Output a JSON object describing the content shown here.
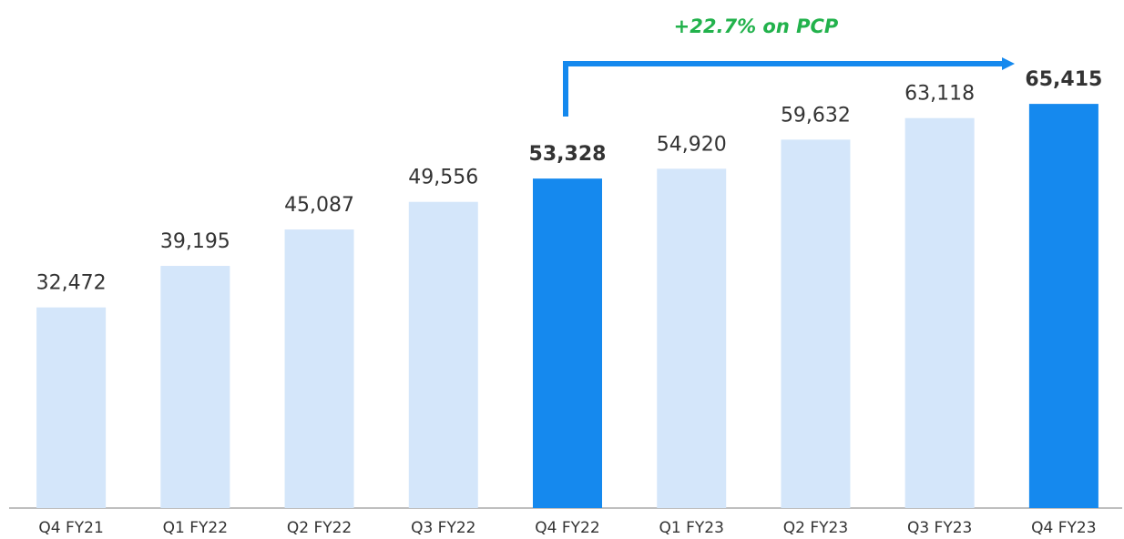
{
  "chart_data": {
    "type": "bar",
    "annotation": "+22.7% on PCP",
    "categories": [
      "Q4 FY21",
      "Q1 FY22",
      "Q2 FY22",
      "Q3 FY22",
      "Q4 FY22",
      "Q1 FY23",
      "Q2 FY23",
      "Q3 FY23",
      "Q4 FY23"
    ],
    "values": [
      32472,
      39195,
      45087,
      49556,
      53328,
      54920,
      59632,
      63118,
      65415
    ],
    "value_labels": [
      "32,472",
      "39,195",
      "45,087",
      "49,556",
      "53,328",
      "54,920",
      "59,632",
      "63,118",
      "65,415"
    ],
    "colors": [
      "#d4e6fa",
      "#d4e6fa",
      "#d4e6fa",
      "#d4e6fa",
      "#1589ee",
      "#d4e6fa",
      "#d4e6fa",
      "#d4e6fa",
      "#1589ee"
    ],
    "ylim": [
      0,
      70000
    ]
  }
}
